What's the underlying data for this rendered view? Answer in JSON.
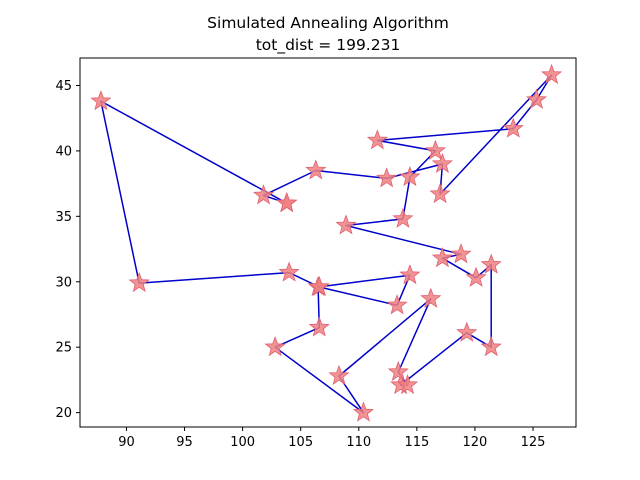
{
  "chart_data": {
    "type": "line",
    "title": "Simulated Annealing Algorithm",
    "subtitle": "tot_dist = 199.231",
    "xlabel": "",
    "ylabel": "",
    "xlim": [
      86.0,
      128.7
    ],
    "ylim": [
      18.9,
      47.1
    ],
    "xticks": [
      "90",
      "95",
      "100",
      "105",
      "110",
      "115",
      "120",
      "125"
    ],
    "yticks": [
      "20",
      "25",
      "30",
      "35",
      "40",
      "45"
    ],
    "grid": false,
    "legend": "none",
    "line_color": "#0000cc",
    "marker_color": "#f08080",
    "marker_edge": "#e06070",
    "marker": "star",
    "x": [
      103.8,
      101.8,
      106.3,
      112.4,
      117.2,
      117.0,
      126.6,
      125.3,
      123.3,
      111.6,
      116.6,
      114.4,
      113.8,
      108.9,
      118.8,
      117.2,
      120.1,
      121.4,
      121.4,
      119.3,
      113.6,
      114.2,
      113.4,
      116.2,
      108.3,
      110.4,
      102.8,
      106.6,
      106.5,
      114.4,
      113.3,
      106.6,
      104.0,
      91.1,
      87.8,
      103.8
    ],
    "y": [
      36.0,
      36.6,
      38.5,
      37.9,
      39.0,
      36.7,
      45.8,
      43.9,
      41.7,
      40.8,
      40.0,
      38.0,
      34.8,
      34.3,
      32.1,
      31.8,
      30.3,
      31.3,
      25.0,
      26.1,
      22.1,
      22.1,
      23.1,
      28.7,
      22.8,
      20.0,
      25.0,
      26.5,
      29.6,
      30.5,
      28.2,
      29.6,
      30.7,
      29.9,
      43.8,
      36.0
    ]
  }
}
